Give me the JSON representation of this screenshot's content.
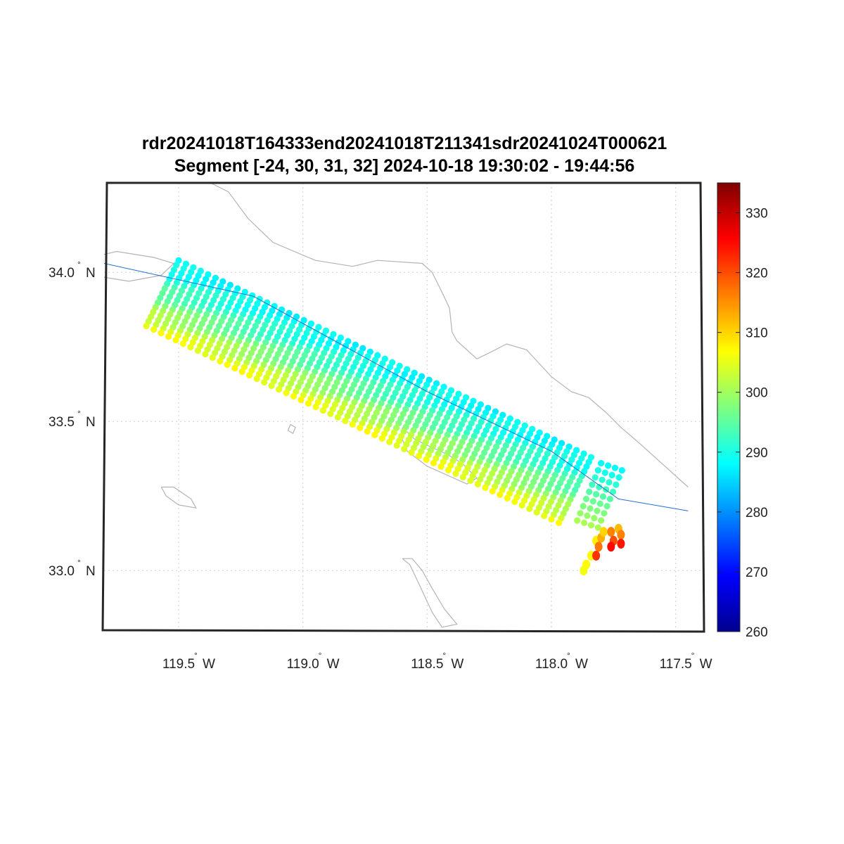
{
  "title": {
    "line1": "rdr20241018T164333end20241018T211341sdr20241024T000621",
    "line2": "Segment [-24, 30, 31, 32] 2024-10-18 19:30:02 - 19:44:56"
  },
  "map": {
    "lon_ticks": [
      {
        "value": -119.5,
        "label": "119.5",
        "hemi": "W"
      },
      {
        "value": -119.0,
        "label": "119.0",
        "hemi": "W"
      },
      {
        "value": -118.5,
        "label": "118.5",
        "hemi": "W"
      },
      {
        "value": -118.0,
        "label": "118.0",
        "hemi": "W"
      },
      {
        "value": -117.5,
        "label": "117.5",
        "hemi": "W"
      }
    ],
    "lat_ticks": [
      {
        "value": 34.0,
        "label": "34.0",
        "hemi": "N"
      },
      {
        "value": 33.5,
        "label": "33.5",
        "hemi": "N"
      },
      {
        "value": 33.0,
        "label": "33.0",
        "hemi": "N"
      }
    ],
    "lon_range": [
      -119.8,
      -117.4
    ],
    "lat_range": [
      32.8,
      34.3
    ],
    "grid": "dotted",
    "colors": {
      "coastline": "#b4b4b4",
      "track": "#1f6fd1",
      "grid": "#cfcfcf"
    },
    "coastline": [
      [
        [
          -119.46,
          34.36
        ],
        [
          -119.42,
          34.32
        ],
        [
          -119.3,
          34.27
        ],
        [
          -119.22,
          34.18
        ],
        [
          -119.12,
          34.1
        ],
        [
          -118.95,
          34.04
        ],
        [
          -118.8,
          34.02
        ],
        [
          -118.7,
          34.04
        ],
        [
          -118.52,
          34.03
        ],
        [
          -118.48,
          34.0
        ],
        [
          -118.45,
          33.95
        ],
        [
          -118.41,
          33.88
        ],
        [
          -118.4,
          33.8
        ],
        [
          -118.38,
          33.77
        ],
        [
          -118.3,
          33.71
        ],
        [
          -118.25,
          33.73
        ],
        [
          -118.18,
          33.76
        ],
        [
          -118.1,
          33.74
        ],
        [
          -118.0,
          33.65
        ],
        [
          -117.92,
          33.6
        ],
        [
          -117.85,
          33.58
        ],
        [
          -117.78,
          33.53
        ],
        [
          -117.72,
          33.48
        ],
        [
          -117.65,
          33.43
        ],
        [
          -117.57,
          33.37
        ],
        [
          -117.45,
          33.28
        ]
      ],
      [
        [
          -119.92,
          34.07
        ],
        [
          -119.85,
          34.05
        ],
        [
          -119.75,
          34.07
        ],
        [
          -119.6,
          34.05
        ],
        [
          -119.52,
          34.03
        ],
        [
          -119.57,
          33.99
        ],
        [
          -119.7,
          33.97
        ],
        [
          -119.85,
          33.99
        ],
        [
          -119.92,
          34.03
        ],
        [
          -119.92,
          34.07
        ]
      ],
      [
        [
          -118.6,
          33.48
        ],
        [
          -118.55,
          33.44
        ],
        [
          -118.5,
          33.42
        ],
        [
          -118.42,
          33.39
        ],
        [
          -118.36,
          33.36
        ],
        [
          -118.3,
          33.31
        ],
        [
          -118.34,
          33.29
        ],
        [
          -118.42,
          33.32
        ],
        [
          -118.5,
          33.35
        ],
        [
          -118.58,
          33.4
        ],
        [
          -118.6,
          33.44
        ],
        [
          -118.6,
          33.48
        ]
      ],
      [
        [
          -119.57,
          33.28
        ],
        [
          -119.52,
          33.28
        ],
        [
          -119.45,
          33.24
        ],
        [
          -119.43,
          33.21
        ],
        [
          -119.5,
          33.22
        ],
        [
          -119.55,
          33.25
        ],
        [
          -119.57,
          33.28
        ]
      ],
      [
        [
          -118.6,
          33.04
        ],
        [
          -118.57,
          33.02
        ],
        [
          -118.53,
          32.95
        ],
        [
          -118.48,
          32.86
        ],
        [
          -118.44,
          32.81
        ],
        [
          -118.38,
          32.82
        ],
        [
          -118.43,
          32.87
        ],
        [
          -118.48,
          32.94
        ],
        [
          -118.52,
          33.0
        ],
        [
          -118.56,
          33.04
        ],
        [
          -118.6,
          33.04
        ]
      ],
      [
        [
          -119.05,
          33.49
        ],
        [
          -119.03,
          33.48
        ],
        [
          -119.04,
          33.46
        ],
        [
          -119.06,
          33.47
        ],
        [
          -119.05,
          33.49
        ]
      ]
    ],
    "track": [
      [
        -119.8,
        34.03
      ],
      [
        -119.2,
        33.92
      ],
      [
        -118.5,
        33.6
      ],
      [
        -118.0,
        33.4
      ],
      [
        -117.73,
        33.24
      ],
      [
        -117.45,
        33.2
      ]
    ]
  },
  "colorbar": {
    "ticks": [
      260,
      270,
      280,
      290,
      300,
      310,
      320,
      330
    ],
    "range": [
      260,
      335
    ],
    "colormap": "jet"
  },
  "chart_data": {
    "type": "scatter",
    "title": "rdr20241018T164333end20241018T211341sdr20241024T000621",
    "subtitle": "Segment [-24, 30, 31, 32] 2024-10-18 19:30:02 - 19:44:56",
    "xlim": [
      -119.8,
      -117.4
    ],
    "ylim": [
      32.8,
      34.3
    ],
    "color_range": [
      260,
      335
    ],
    "swath": {
      "start_center": [
        -119.5,
        34.04
      ],
      "end_center": [
        -117.84,
        33.38
      ],
      "cross_track_end": [
        -119.63,
        33.82
      ],
      "along_steps": 56,
      "cross_steps": 14,
      "value_edge_near": 288,
      "value_edge_far": 306
    },
    "extra_points": [
      {
        "x": -117.84,
        "y": 33.05,
        "v": 307
      },
      {
        "x": -117.86,
        "y": 33.02,
        "v": 307
      },
      {
        "x": -117.87,
        "y": 33.0,
        "v": 306
      },
      {
        "x": -117.82,
        "y": 33.1,
        "v": 308
      },
      {
        "x": -117.8,
        "y": 33.11,
        "v": 313
      },
      {
        "x": -117.81,
        "y": 33.08,
        "v": 317
      },
      {
        "x": -117.82,
        "y": 33.05,
        "v": 322
      },
      {
        "x": -117.79,
        "y": 33.13,
        "v": 310
      },
      {
        "x": -117.76,
        "y": 33.13,
        "v": 316
      },
      {
        "x": -117.75,
        "y": 33.1,
        "v": 320
      },
      {
        "x": -117.76,
        "y": 33.08,
        "v": 325
      },
      {
        "x": -117.73,
        "y": 33.14,
        "v": 312
      },
      {
        "x": -117.72,
        "y": 33.12,
        "v": 316
      },
      {
        "x": -117.72,
        "y": 33.09,
        "v": 324
      }
    ]
  }
}
